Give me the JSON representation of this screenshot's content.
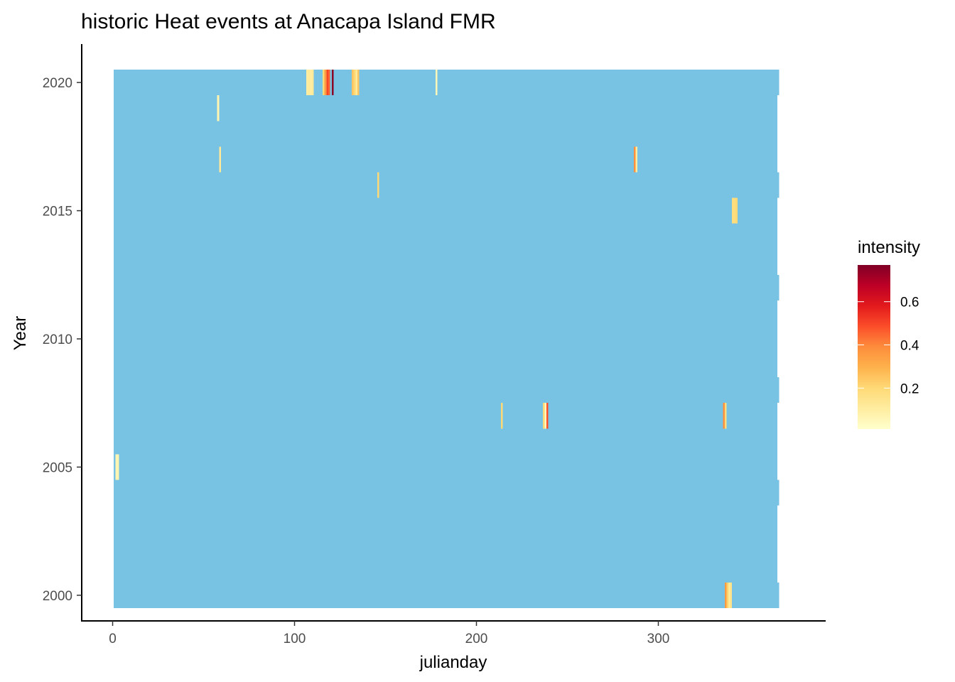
{
  "chart_data": {
    "type": "heatmap",
    "title": "historic Heat events at Anacapa Island FMR",
    "xlabel": "julianday",
    "ylabel": "Year",
    "xlim": [
      -17,
      392
    ],
    "ylim": [
      1999,
      2021.5
    ],
    "x_ticks": [
      0,
      100,
      200,
      300
    ],
    "y_ticks": [
      2000,
      2005,
      2010,
      2015,
      2020
    ],
    "years": [
      2000,
      2001,
      2002,
      2003,
      2004,
      2005,
      2006,
      2007,
      2008,
      2009,
      2010,
      2011,
      2012,
      2013,
      2014,
      2015,
      2016,
      2017,
      2018,
      2019,
      2020
    ],
    "leap_years": [
      2000,
      2004,
      2008,
      2012,
      2016,
      2020
    ],
    "background_color": "#78c2e4",
    "grid": false,
    "legend": {
      "title": "intensity",
      "position": "right",
      "ticks": [
        0.2,
        0.4,
        0.6
      ],
      "range": [
        0.01,
        0.77
      ],
      "colors": [
        "#ffffcc",
        "#ffeda0",
        "#fed976",
        "#feb24c",
        "#fd8d3c",
        "#fc4e2a",
        "#e31a1c",
        "#bd0026",
        "#800026"
      ]
    },
    "events": [
      {
        "year": 2000,
        "day": 337,
        "intensity": 0.35
      },
      {
        "year": 2000,
        "day": 338,
        "intensity": 0.22
      },
      {
        "year": 2000,
        "day": 339,
        "intensity": 0.12
      },
      {
        "year": 2000,
        "day": 340,
        "intensity": 0.15
      },
      {
        "year": 2005,
        "day": 2,
        "intensity": 0.06
      },
      {
        "year": 2005,
        "day": 3,
        "intensity": 0.07
      },
      {
        "year": 2007,
        "day": 214,
        "intensity": 0.2
      },
      {
        "year": 2007,
        "day": 237,
        "intensity": 0.2
      },
      {
        "year": 2007,
        "day": 238,
        "intensity": 0.05
      },
      {
        "year": 2007,
        "day": 239,
        "intensity": 0.48
      },
      {
        "year": 2007,
        "day": 336,
        "intensity": 0.38
      },
      {
        "year": 2007,
        "day": 337,
        "intensity": 0.18
      },
      {
        "year": 2015,
        "day": 341,
        "intensity": 0.18
      },
      {
        "year": 2015,
        "day": 342,
        "intensity": 0.18
      },
      {
        "year": 2015,
        "day": 343,
        "intensity": 0.2
      },
      {
        "year": 2016,
        "day": 146,
        "intensity": 0.2
      },
      {
        "year": 2017,
        "day": 59,
        "intensity": 0.12
      },
      {
        "year": 2017,
        "day": 287,
        "intensity": 0.38
      },
      {
        "year": 2017,
        "day": 288,
        "intensity": 0.1
      },
      {
        "year": 2019,
        "day": 58,
        "intensity": 0.07
      },
      {
        "year": 2020,
        "day": 107,
        "intensity": 0.1
      },
      {
        "year": 2020,
        "day": 108,
        "intensity": 0.12
      },
      {
        "year": 2020,
        "day": 109,
        "intensity": 0.1
      },
      {
        "year": 2020,
        "day": 110,
        "intensity": 0.12
      },
      {
        "year": 2020,
        "day": 116,
        "intensity": 0.2
      },
      {
        "year": 2020,
        "day": 117,
        "intensity": 0.35
      },
      {
        "year": 2020,
        "day": 118,
        "intensity": 0.5
      },
      {
        "year": 2020,
        "day": 119,
        "intensity": 0.45
      },
      {
        "year": 2020,
        "day": 121,
        "intensity": 0.75
      },
      {
        "year": 2020,
        "day": 132,
        "intensity": 0.25
      },
      {
        "year": 2020,
        "day": 133,
        "intensity": 0.2
      },
      {
        "year": 2020,
        "day": 134,
        "intensity": 0.12
      },
      {
        "year": 2020,
        "day": 135,
        "intensity": 0.25
      },
      {
        "year": 2020,
        "day": 178,
        "intensity": 0.05
      }
    ]
  }
}
